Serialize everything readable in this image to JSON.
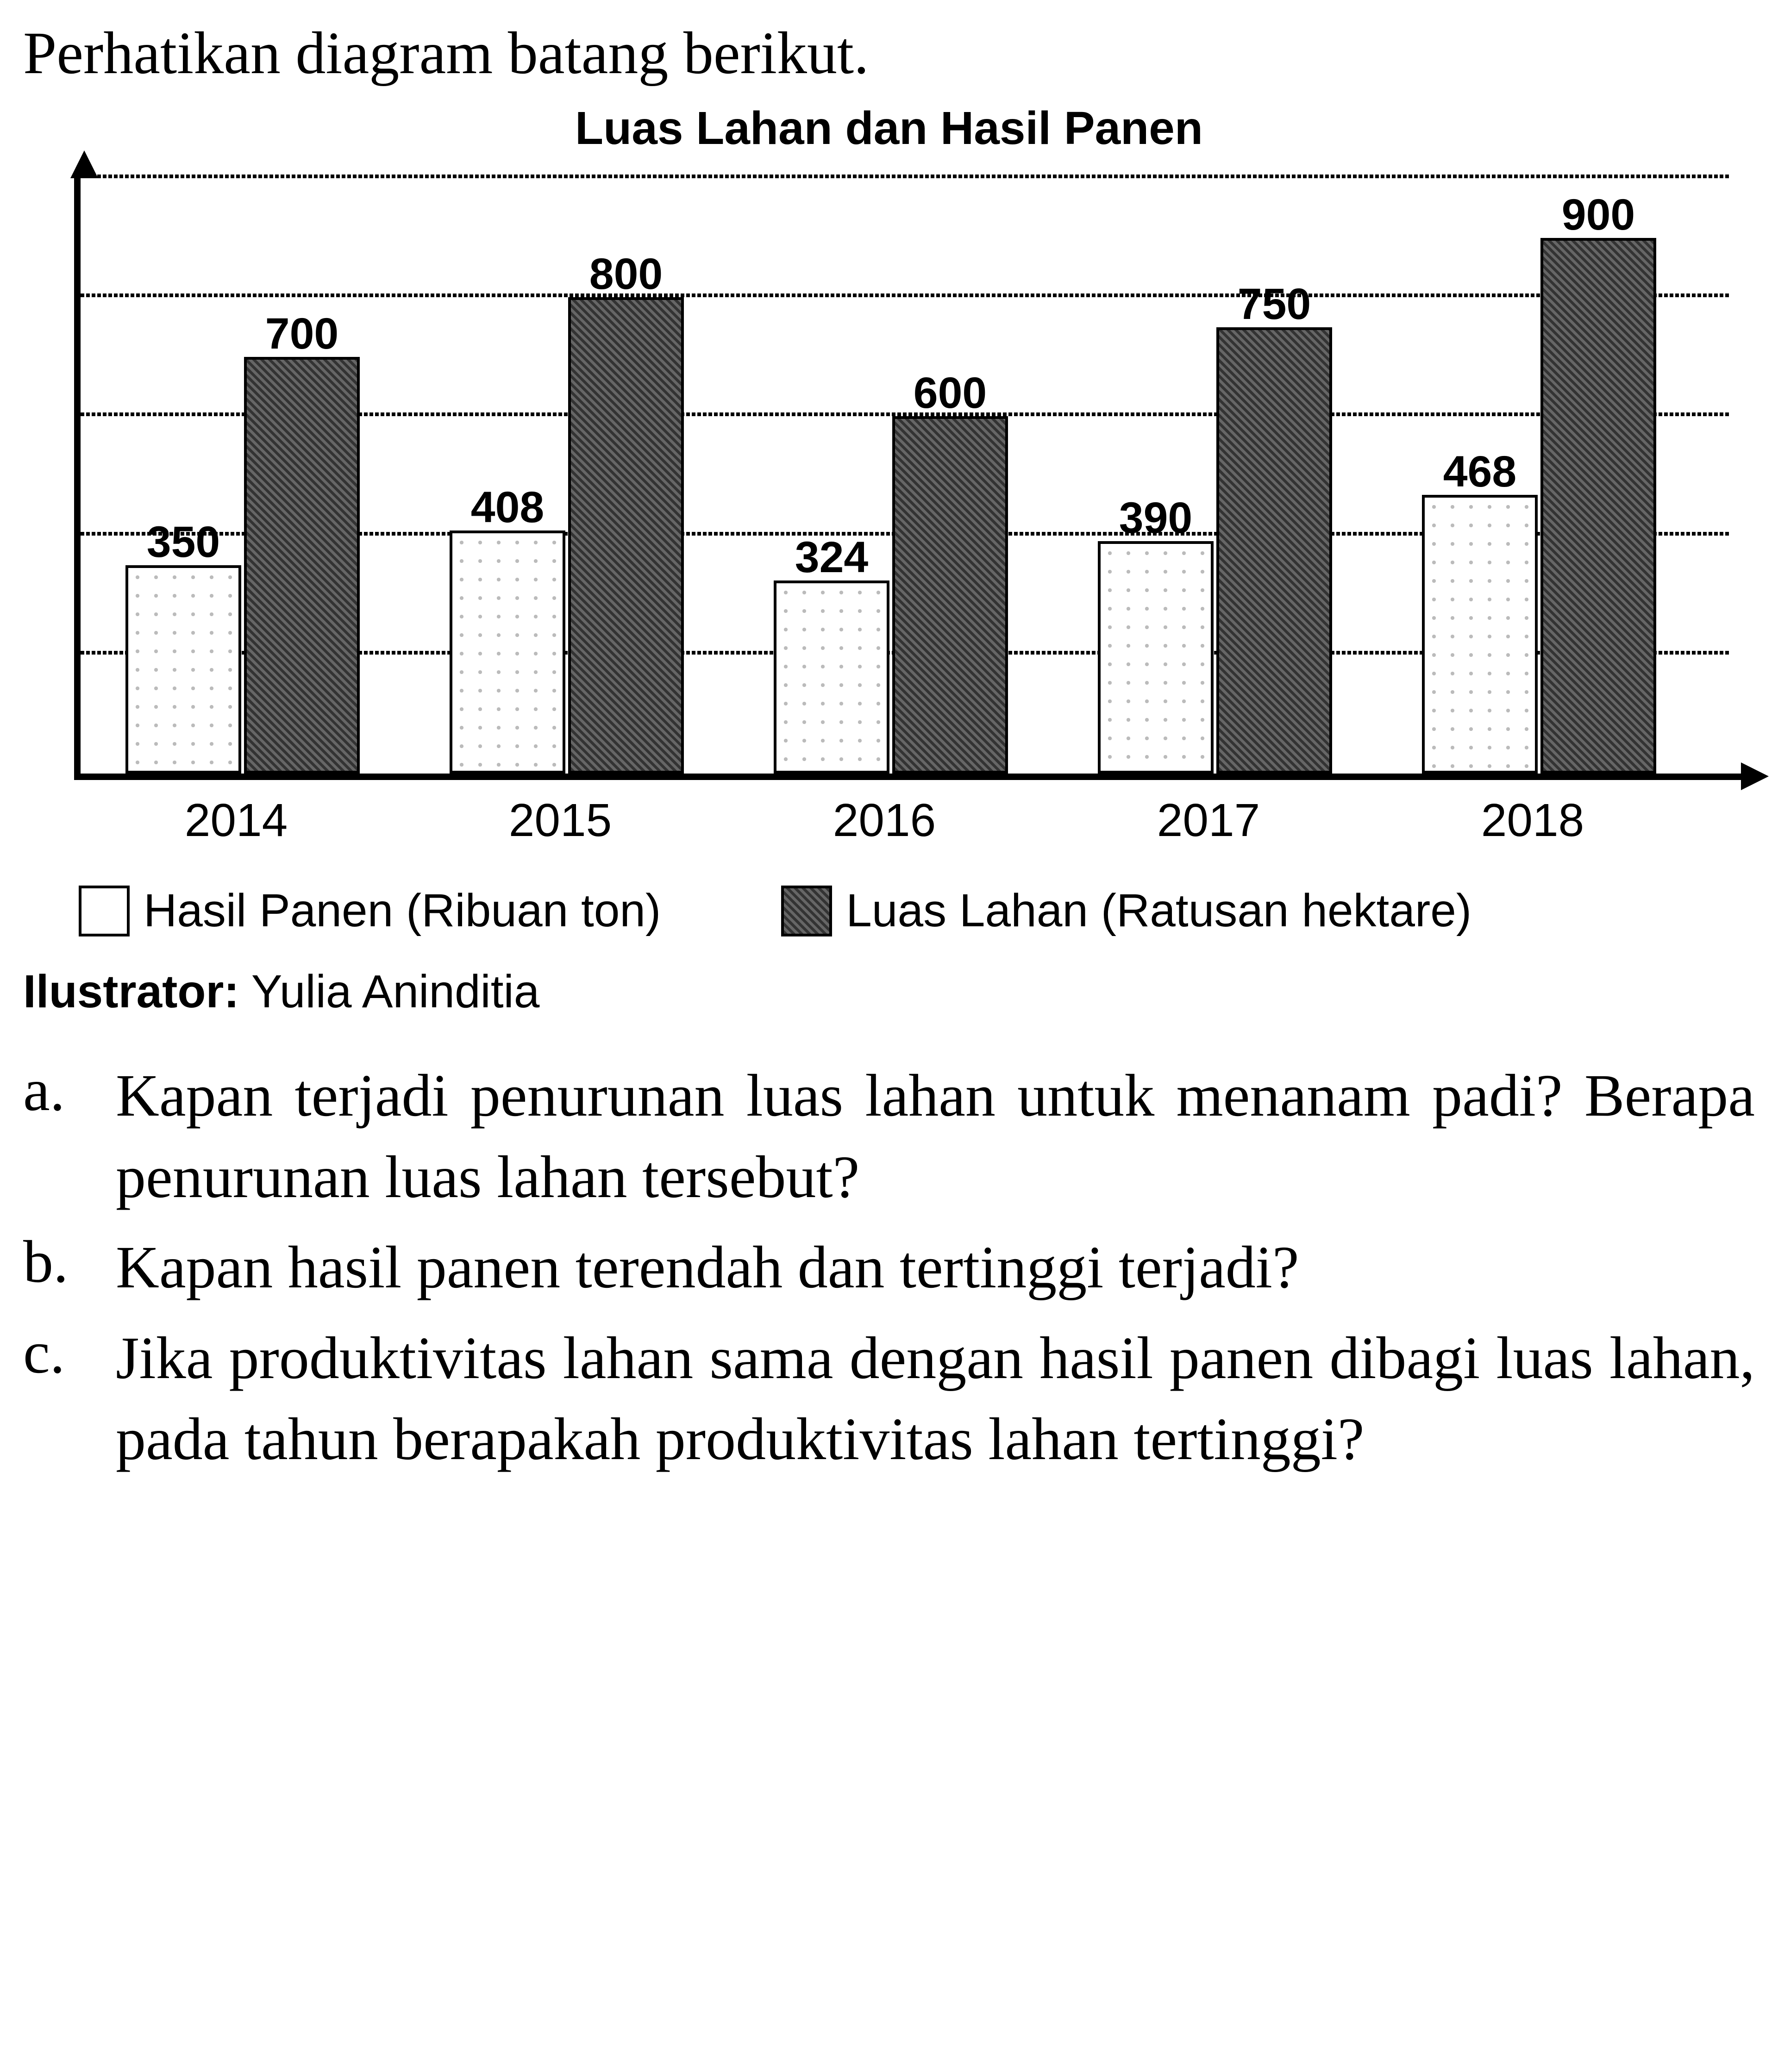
{
  "title": "Perhatikan diagram batang berikut.",
  "chart": {
    "type": "bar",
    "title": "Luas Lahan dan Hasil Panen",
    "categories": [
      "2014",
      "2015",
      "2016",
      "2017",
      "2018"
    ],
    "series_a": {
      "name": "Hasil Panen (Ribuan ton)",
      "values": [
        350,
        408,
        324,
        390,
        468
      ]
    },
    "series_b": {
      "name": "Luas Lahan (Ratusan hektare)",
      "values": [
        700,
        800,
        600,
        750,
        900
      ]
    },
    "y_max": 1000,
    "gridlines": [
      200,
      400,
      600,
      800,
      1000
    ],
    "bar_a_bg": "#ffffff",
    "bar_b_bg": "#555555",
    "border_color": "#000000",
    "background_color": "#ffffff",
    "label_fontsize": 95,
    "axis_label_fontsize": 100,
    "title_fontsize": 100
  },
  "legend": {
    "a": "Hasil Panen (Ribuan ton)",
    "b": "Luas Lahan (Ratusan hektare)"
  },
  "illustrator_label": "Ilustrator:",
  "illustrator_name": "Yulia Aninditia",
  "questions": {
    "a": {
      "letter": "a.",
      "text": "Kapan terjadi penurunan luas lahan untuk menanam padi? Berapa penurunan luas lahan tersebut?"
    },
    "b": {
      "letter": "b.",
      "text": "Kapan hasil panen terendah dan tertinggi terjadi?"
    },
    "c": {
      "letter": "c.",
      "text": "Jika produktivitas lahan sama dengan hasil panen dibagi luas lahan, pada tahun berapakah produktivitas lahan tertinggi?"
    }
  }
}
